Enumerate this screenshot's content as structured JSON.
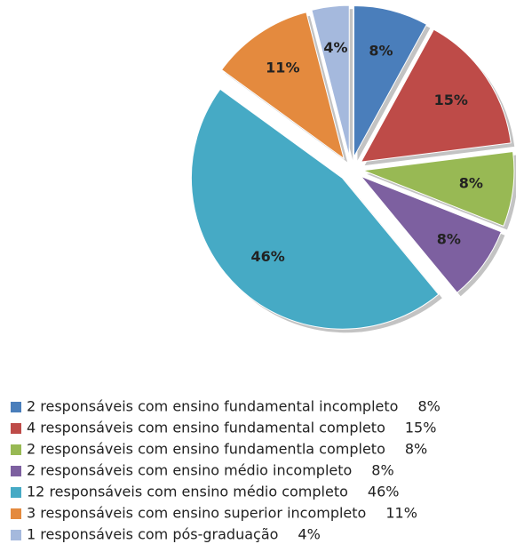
{
  "chart_data": {
    "type": "pie",
    "categories": [
      "2 responsáveis com ensino fundamental incompleto",
      "4 responsáveis com ensino fundamental completo",
      "2 responsáveis com ensino fundamentla completo",
      "2 responsáveis com ensino médio incompleto",
      "12 responsáveis com ensino médio completo",
      "3 responsáveis com ensino superior incompleto",
      "1 responsáveis com pós-graduação"
    ],
    "values": [
      8,
      15,
      8,
      8,
      46,
      11,
      4
    ],
    "value_labels": [
      "8%",
      "15%",
      "8%",
      "8%",
      "46%",
      "11%",
      "4%"
    ],
    "colors": [
      "#4a7ebb",
      "#be4b48",
      "#98b954",
      "#7d60a0",
      "#46aac5",
      "#e48a3e",
      "#a5b9dd"
    ],
    "legend": "bottom"
  }
}
